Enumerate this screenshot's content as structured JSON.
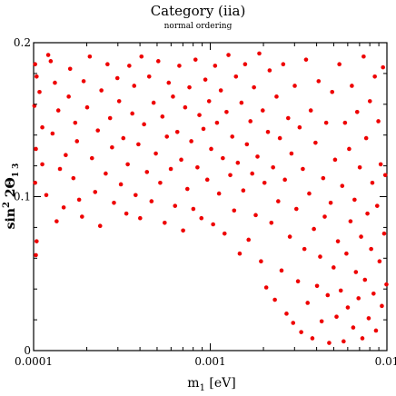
{
  "chart_data": {
    "type": "scatter",
    "title": "Category (iia)",
    "subtitle": "normal ordering",
    "xlabel": {
      "base": "m",
      "sub": "1",
      "suffix": " [eV]"
    },
    "ylabel": {
      "pre": "sin",
      "sup": "2",
      "mid": " 2Θ",
      "sub": "1 3"
    },
    "x_scale": "log",
    "xlim": [
      0.0001,
      0.01
    ],
    "ylim": [
      0,
      0.2
    ],
    "x_ticks": [
      {
        "value": 0.0001,
        "label": "0.0001"
      },
      {
        "value": 0.001,
        "label": "0.001"
      },
      {
        "value": 0.01,
        "label": "0.01"
      }
    ],
    "y_ticks": [
      {
        "value": 0,
        "label": "0"
      },
      {
        "value": 0.1,
        "label": "0.1"
      },
      {
        "value": 0.2,
        "label": "0.2"
      }
    ],
    "grid": false,
    "marker_color": "#ee0000",
    "series": [
      {
        "points": [
          [
            0.000102,
            0.186
          ],
          [
            0.000104,
            0.178
          ],
          [
            0.000101,
            0.159
          ],
          [
            0.000103,
            0.131
          ],
          [
            0.000102,
            0.109
          ],
          [
            0.000104,
            0.071
          ],
          [
            0.000103,
            0.062
          ],
          [
            0.000108,
            0.168
          ],
          [
            0.000112,
            0.145
          ],
          [
            0.000118,
            0.101
          ],
          [
            0.000112,
            0.121
          ],
          [
            0.000125,
            0.188
          ],
          [
            0.000121,
            0.192
          ],
          [
            0.000132,
            0.174
          ],
          [
            0.000138,
            0.156
          ],
          [
            0.000128,
            0.141
          ],
          [
            0.000141,
            0.118
          ],
          [
            0.000148,
            0.093
          ],
          [
            0.000135,
            0.084
          ],
          [
            0.000152,
            0.127
          ],
          [
            0.000161,
            0.183
          ],
          [
            0.000158,
            0.165
          ],
          [
            0.000172,
            0.148
          ],
          [
            0.000168,
            0.112
          ],
          [
            0.000181,
            0.098
          ],
          [
            0.000176,
            0.136
          ],
          [
            0.000192,
            0.175
          ],
          [
            0.000188,
            0.087
          ],
          [
            0.000201,
            0.158
          ],
          [
            0.000214,
            0.125
          ],
          [
            0.000208,
            0.191
          ],
          [
            0.000223,
            0.103
          ],
          [
            0.000231,
            0.143
          ],
          [
            0.000242,
            0.169
          ],
          [
            0.000238,
            0.081
          ],
          [
            0.000256,
            0.115
          ],
          [
            0.000262,
            0.186
          ],
          [
            0.000271,
            0.151
          ],
          [
            0.000285,
            0.096
          ],
          [
            0.000278,
            0.132
          ],
          [
            0.000298,
            0.177
          ],
          [
            0.000312,
            0.108
          ],
          [
            0.000305,
            0.162
          ],
          [
            0.000322,
            0.138
          ],
          [
            0.000335,
            0.089
          ],
          [
            0.000348,
            0.185
          ],
          [
            0.000341,
            0.121
          ],
          [
            0.000362,
            0.154
          ],
          [
            0.000378,
            0.101
          ],
          [
            0.000371,
            0.172
          ],
          [
            0.000392,
            0.134
          ],
          [
            0.000408,
            0.191
          ],
          [
            0.000401,
            0.086
          ],
          [
            0.000422,
            0.147
          ],
          [
            0.000438,
            0.116
          ],
          [
            0.000451,
            0.178
          ],
          [
            0.000465,
            0.097
          ],
          [
            0.000478,
            0.161
          ],
          [
            0.000492,
            0.128
          ],
          [
            0.000508,
            0.188
          ],
          [
            0.000521,
            0.109
          ],
          [
            0.000536,
            0.152
          ],
          [
            0.000552,
            0.083
          ],
          [
            0.000568,
            0.139
          ],
          [
            0.000582,
            0.174
          ],
          [
            0.000598,
            0.118
          ],
          [
            0.000615,
            0.165
          ],
          [
            0.000632,
            0.094
          ],
          [
            0.000651,
            0.142
          ],
          [
            0.000668,
            0.185
          ],
          [
            0.000685,
            0.124
          ],
          [
            0.000702,
            0.078
          ],
          [
            0.000721,
            0.158
          ],
          [
            0.000742,
            0.105
          ],
          [
            0.000762,
            0.171
          ],
          [
            0.000781,
            0.136
          ],
          [
            0.000802,
            0.092
          ],
          [
            0.000825,
            0.189
          ],
          [
            0.000846,
            0.119
          ],
          [
            0.000868,
            0.153
          ],
          [
            0.000891,
            0.086
          ],
          [
            0.000915,
            0.144
          ],
          [
            0.000938,
            0.176
          ],
          [
            0.000962,
            0.111
          ],
          [
            0.000985,
            0.162
          ],
          [
            0.001012,
            0.131
          ],
          [
            0.001038,
            0.082
          ],
          [
            0.001065,
            0.185
          ],
          [
            0.001092,
            0.148
          ],
          [
            0.001121,
            0.102
          ],
          [
            0.001148,
            0.169
          ],
          [
            0.001178,
            0.125
          ],
          [
            0.001205,
            0.076
          ],
          [
            0.001236,
            0.155
          ],
          [
            0.001268,
            0.192
          ],
          [
            0.001298,
            0.114
          ],
          [
            0.001332,
            0.139
          ],
          [
            0.001365,
            0.091
          ],
          [
            0.001398,
            0.178
          ],
          [
            0.001432,
            0.122
          ],
          [
            0.001468,
            0.063
          ],
          [
            0.001502,
            0.161
          ],
          [
            0.001538,
            0.104
          ],
          [
            0.001575,
            0.186
          ],
          [
            0.001612,
            0.134
          ],
          [
            0.001648,
            0.072
          ],
          [
            0.001688,
            0.149
          ],
          [
            0.001728,
            0.115
          ],
          [
            0.001768,
            0.171
          ],
          [
            0.001808,
            0.088
          ],
          [
            0.001851,
            0.126
          ],
          [
            0.001895,
            0.193
          ],
          [
            0.001938,
            0.058
          ],
          [
            0.001982,
            0.156
          ],
          [
            0.002028,
            0.109
          ],
          [
            0.002075,
            0.041
          ],
          [
            0.002121,
            0.142
          ],
          [
            0.002168,
            0.182
          ],
          [
            0.002218,
            0.083
          ],
          [
            0.002268,
            0.119
          ],
          [
            0.002321,
            0.033
          ],
          [
            0.002372,
            0.165
          ],
          [
            0.002425,
            0.097
          ],
          [
            0.002478,
            0.138
          ],
          [
            0.002532,
            0.052
          ],
          [
            0.002588,
            0.186
          ],
          [
            0.002645,
            0.111
          ],
          [
            0.002702,
            0.024
          ],
          [
            0.002761,
            0.151
          ],
          [
            0.002822,
            0.074
          ],
          [
            0.002882,
            0.128
          ],
          [
            0.002945,
            0.018
          ],
          [
            0.003008,
            0.172
          ],
          [
            0.003072,
            0.092
          ],
          [
            0.003138,
            0.045
          ],
          [
            0.003205,
            0.145
          ],
          [
            0.003272,
            0.012
          ],
          [
            0.003342,
            0.118
          ],
          [
            0.003412,
            0.066
          ],
          [
            0.003485,
            0.189
          ],
          [
            0.003558,
            0.031
          ],
          [
            0.003632,
            0.102
          ],
          [
            0.003708,
            0.156
          ],
          [
            0.003785,
            0.008
          ],
          [
            0.003862,
            0.079
          ],
          [
            0.003942,
            0.135
          ],
          [
            0.004022,
            0.042
          ],
          [
            0.004105,
            0.175
          ],
          [
            0.004188,
            0.061
          ],
          [
            0.004272,
            0.019
          ],
          [
            0.004358,
            0.112
          ],
          [
            0.004445,
            0.087
          ],
          [
            0.004532,
            0.148
          ],
          [
            0.004622,
            0.036
          ],
          [
            0.004712,
            0.005
          ],
          [
            0.004805,
            0.096
          ],
          [
            0.004898,
            0.168
          ],
          [
            0.004992,
            0.054
          ],
          [
            0.005088,
            0.124
          ],
          [
            0.005185,
            0.022
          ],
          [
            0.005282,
            0.071
          ],
          [
            0.005382,
            0.186
          ],
          [
            0.005482,
            0.039
          ],
          [
            0.005585,
            0.107
          ],
          [
            0.005688,
            0.006
          ],
          [
            0.005792,
            0.148
          ],
          [
            0.005898,
            0.063
          ],
          [
            0.006005,
            0.028
          ],
          [
            0.006112,
            0.131
          ],
          [
            0.006222,
            0.084
          ],
          [
            0.006332,
            0.172
          ],
          [
            0.006445,
            0.015
          ],
          [
            0.006558,
            0.098
          ],
          [
            0.006672,
            0.051
          ],
          [
            0.006788,
            0.155
          ],
          [
            0.006905,
            0.034
          ],
          [
            0.007022,
            0.119
          ],
          [
            0.007142,
            0.074
          ],
          [
            0.007262,
            0.008
          ],
          [
            0.007385,
            0.191
          ],
          [
            0.007508,
            0.046
          ],
          [
            0.007632,
            0.138
          ],
          [
            0.007758,
            0.089
          ],
          [
            0.007885,
            0.021
          ],
          [
            0.008012,
            0.162
          ],
          [
            0.008142,
            0.066
          ],
          [
            0.008272,
            0.109
          ],
          [
            0.008405,
            0.037
          ],
          [
            0.008538,
            0.178
          ],
          [
            0.008672,
            0.013
          ],
          [
            0.008808,
            0.094
          ],
          [
            0.008945,
            0.149
          ],
          [
            0.009082,
            0.058
          ],
          [
            0.009222,
            0.121
          ],
          [
            0.009362,
            0.029
          ],
          [
            0.009505,
            0.184
          ],
          [
            0.009648,
            0.076
          ],
          [
            0.009792,
            0.114
          ],
          [
            0.009938,
            0.043
          ]
        ]
      }
    ]
  }
}
